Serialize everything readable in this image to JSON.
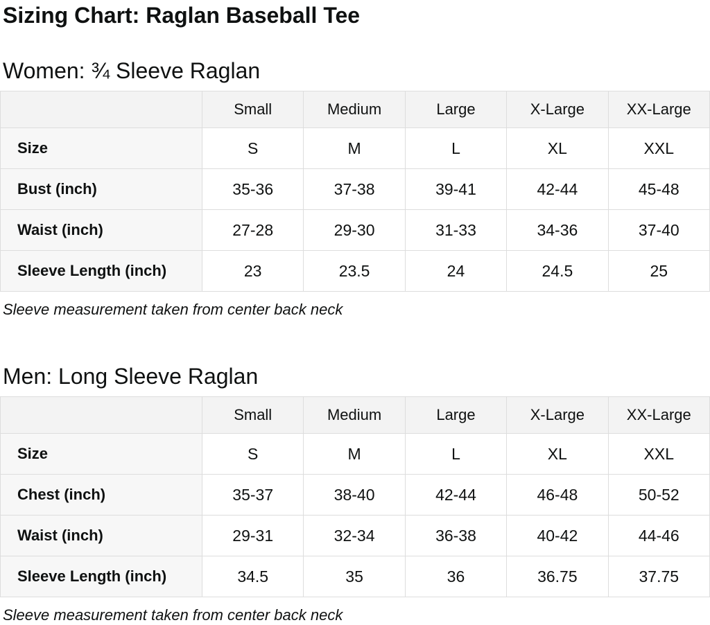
{
  "page": {
    "title": "Sizing Chart: Raglan Baseball Tee"
  },
  "colors": {
    "text": "#0f1111",
    "border": "#dddddd",
    "header_row_bg": "#f3f3f3",
    "label_column_bg": "#f7f7f7"
  },
  "sections": [
    {
      "id": "women",
      "heading": "Women: ¾ Sleeve Raglan",
      "note": "Sleeve measurement taken from center back neck",
      "table": {
        "columns": [
          "Small",
          "Medium",
          "Large",
          "X-Large",
          "XX-Large"
        ],
        "rows": [
          {
            "label": "Size",
            "values": [
              "S",
              "M",
              "L",
              "XL",
              "XXL"
            ]
          },
          {
            "label": "Bust (inch)",
            "values": [
              "35-36",
              "37-38",
              "39-41",
              "42-44",
              "45-48"
            ]
          },
          {
            "label": "Waist (inch)",
            "values": [
              "27-28",
              "29-30",
              "31-33",
              "34-36",
              "37-40"
            ]
          },
          {
            "label": "Sleeve Length (inch)",
            "values": [
              "23",
              "23.5",
              "24",
              "24.5",
              "25"
            ]
          }
        ]
      }
    },
    {
      "id": "men",
      "heading": "Men: Long Sleeve Raglan",
      "note": "Sleeve measurement taken from center back neck",
      "table": {
        "columns": [
          "Small",
          "Medium",
          "Large",
          "X-Large",
          "XX-Large"
        ],
        "rows": [
          {
            "label": "Size",
            "values": [
              "S",
              "M",
              "L",
              "XL",
              "XXL"
            ]
          },
          {
            "label": "Chest (inch)",
            "values": [
              "35-37",
              "38-40",
              "42-44",
              "46-48",
              "50-52"
            ]
          },
          {
            "label": "Waist (inch)",
            "values": [
              "29-31",
              "32-34",
              "36-38",
              "40-42",
              "44-46"
            ]
          },
          {
            "label": "Sleeve Length (inch)",
            "values": [
              "34.5",
              "35",
              "36",
              "36.75",
              "37.75"
            ]
          }
        ]
      }
    }
  ]
}
